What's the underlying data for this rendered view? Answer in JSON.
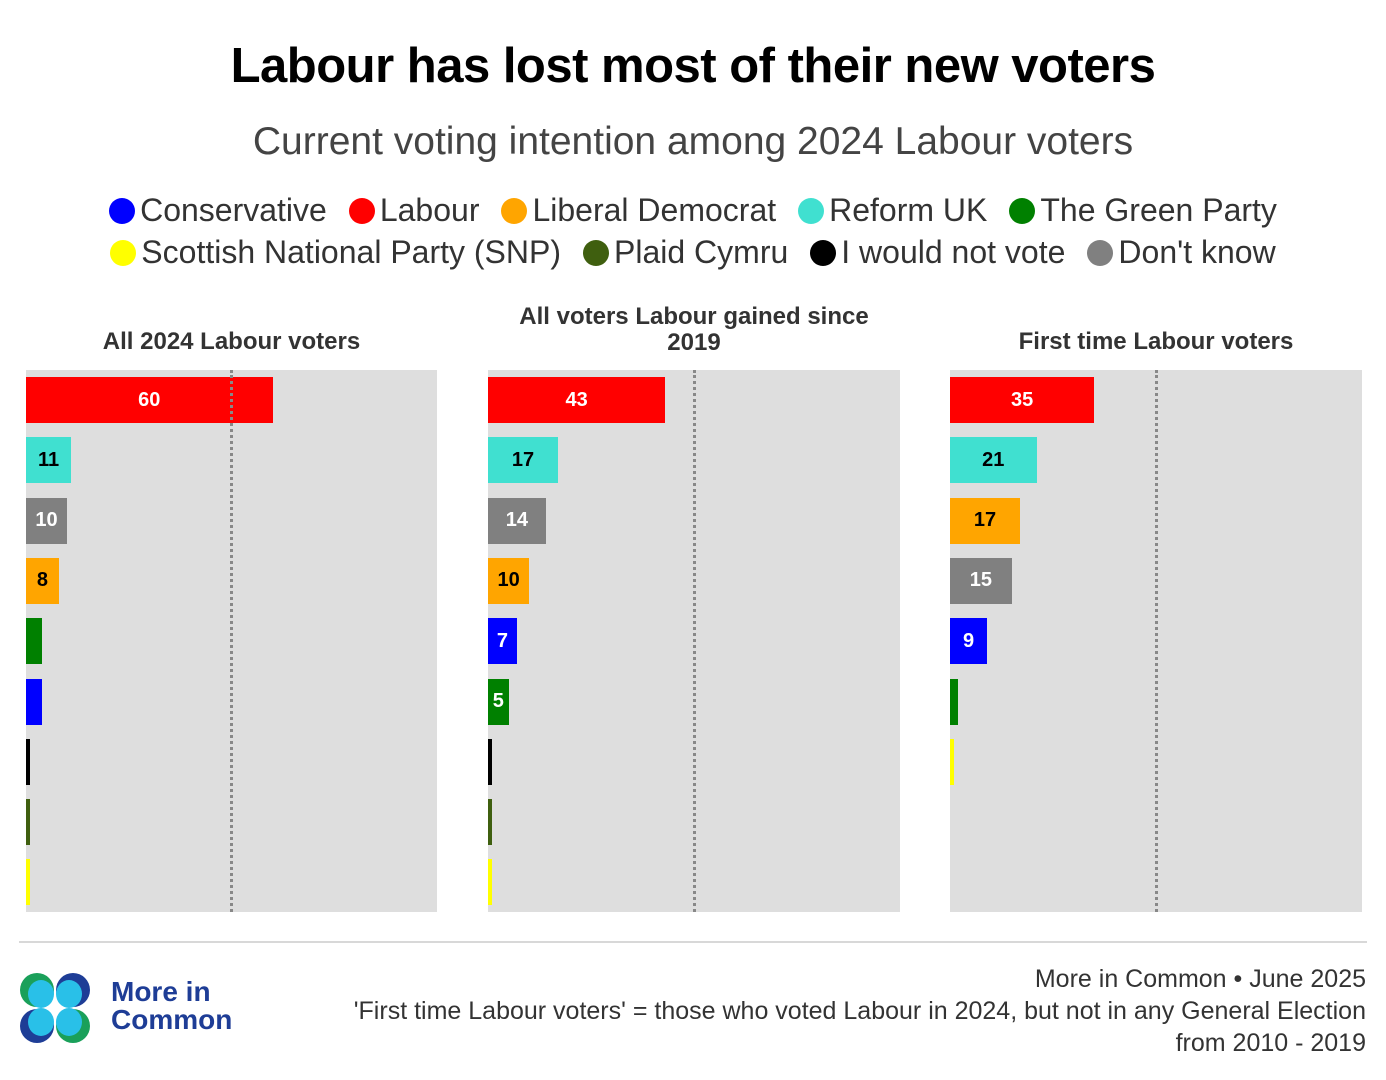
{
  "title": "Labour has lost most of their new voters",
  "subtitle": "Current voting intention among 2024 Labour voters",
  "legend": [
    {
      "label": "Conservative",
      "color": "#0000ff",
      "row": 1
    },
    {
      "label": "Labour",
      "color": "#ff0000",
      "row": 1
    },
    {
      "label": "Liberal Democrat",
      "color": "#ffa500",
      "row": 1
    },
    {
      "label": "Reform UK",
      "color": "#40e0d0",
      "row": 1
    },
    {
      "label": "The Green Party",
      "color": "#008000",
      "row": 1
    },
    {
      "label": "Scottish National Party (SNP)",
      "color": "#ffff00",
      "row": 2
    },
    {
      "label": "Plaid Cymru",
      "color": "#3f5f0f",
      "row": 2
    },
    {
      "label": "I would not vote",
      "color": "#000000",
      "row": 2
    },
    {
      "label": "Don't know",
      "color": "#808080",
      "row": 2
    }
  ],
  "chart_data": [
    {
      "type": "bar",
      "orientation": "horizontal",
      "title": "All 2024 Labour voters",
      "xlim": [
        0,
        100
      ],
      "reference_line": 50,
      "bars": [
        {
          "party": "Labour",
          "value": 60,
          "label": "60",
          "color": "#ff0000",
          "label_color": "#ffffff"
        },
        {
          "party": "Reform UK",
          "value": 11,
          "label": "11",
          "color": "#40e0d0",
          "label_color": "#000000"
        },
        {
          "party": "Don't know",
          "value": 10,
          "label": "10",
          "color": "#808080",
          "label_color": "#ffffff"
        },
        {
          "party": "Liberal Democrat",
          "value": 8,
          "label": "8",
          "color": "#ffa500",
          "label_color": "#000000"
        },
        {
          "party": "The Green Party",
          "value": 4,
          "label": "",
          "color": "#008000",
          "label_color": "#ffffff"
        },
        {
          "party": "Conservative",
          "value": 4,
          "label": "",
          "color": "#0000ff",
          "label_color": "#ffffff"
        },
        {
          "party": "I would not vote",
          "value": 1,
          "label": "",
          "color": "#000000",
          "label_color": "#ffffff"
        },
        {
          "party": "Plaid Cymru",
          "value": 1,
          "label": "",
          "color": "#3f5f0f",
          "label_color": "#ffffff"
        },
        {
          "party": "Scottish National Party (SNP)",
          "value": 1,
          "label": "",
          "color": "#ffff00",
          "label_color": "#000000"
        }
      ]
    },
    {
      "type": "bar",
      "orientation": "horizontal",
      "title": "All voters Labour gained since 2019",
      "xlim": [
        0,
        100
      ],
      "reference_line": 50,
      "bars": [
        {
          "party": "Labour",
          "value": 43,
          "label": "43",
          "color": "#ff0000",
          "label_color": "#ffffff"
        },
        {
          "party": "Reform UK",
          "value": 17,
          "label": "17",
          "color": "#40e0d0",
          "label_color": "#000000"
        },
        {
          "party": "Don't know",
          "value": 14,
          "label": "14",
          "color": "#808080",
          "label_color": "#ffffff"
        },
        {
          "party": "Liberal Democrat",
          "value": 10,
          "label": "10",
          "color": "#ffa500",
          "label_color": "#000000"
        },
        {
          "party": "Conservative",
          "value": 7,
          "label": "7",
          "color": "#0000ff",
          "label_color": "#ffffff"
        },
        {
          "party": "The Green Party",
          "value": 5,
          "label": "5",
          "color": "#008000",
          "label_color": "#ffffff"
        },
        {
          "party": "I would not vote",
          "value": 1,
          "label": "",
          "color": "#000000",
          "label_color": "#ffffff"
        },
        {
          "party": "Plaid Cymru",
          "value": 1,
          "label": "",
          "color": "#3f5f0f",
          "label_color": "#ffffff"
        },
        {
          "party": "Scottish National Party (SNP)",
          "value": 1,
          "label": "",
          "color": "#ffff00",
          "label_color": "#000000"
        }
      ]
    },
    {
      "type": "bar",
      "orientation": "horizontal",
      "title": "First time Labour voters",
      "xlim": [
        0,
        100
      ],
      "reference_line": 50,
      "bars": [
        {
          "party": "Labour",
          "value": 35,
          "label": "35",
          "color": "#ff0000",
          "label_color": "#ffffff"
        },
        {
          "party": "Reform UK",
          "value": 21,
          "label": "21",
          "color": "#40e0d0",
          "label_color": "#000000"
        },
        {
          "party": "Liberal Democrat",
          "value": 17,
          "label": "17",
          "color": "#ffa500",
          "label_color": "#000000"
        },
        {
          "party": "Don't know",
          "value": 15,
          "label": "15",
          "color": "#808080",
          "label_color": "#ffffff"
        },
        {
          "party": "Conservative",
          "value": 9,
          "label": "9",
          "color": "#0000ff",
          "label_color": "#ffffff"
        },
        {
          "party": "The Green Party",
          "value": 2,
          "label": "",
          "color": "#008000",
          "label_color": "#ffffff"
        },
        {
          "party": "Scottish National Party (SNP)",
          "value": 1,
          "label": "",
          "color": "#ffff00",
          "label_color": "#000000"
        }
      ]
    }
  ],
  "logo": {
    "line1": "More in",
    "line2": "Common"
  },
  "footer": {
    "source": "More in Common • June 2025",
    "note_line1": "'First time Labour voters' = those who voted Labour in 2024, but not in any General Election",
    "note_line2": "from 2010 - 2019"
  }
}
